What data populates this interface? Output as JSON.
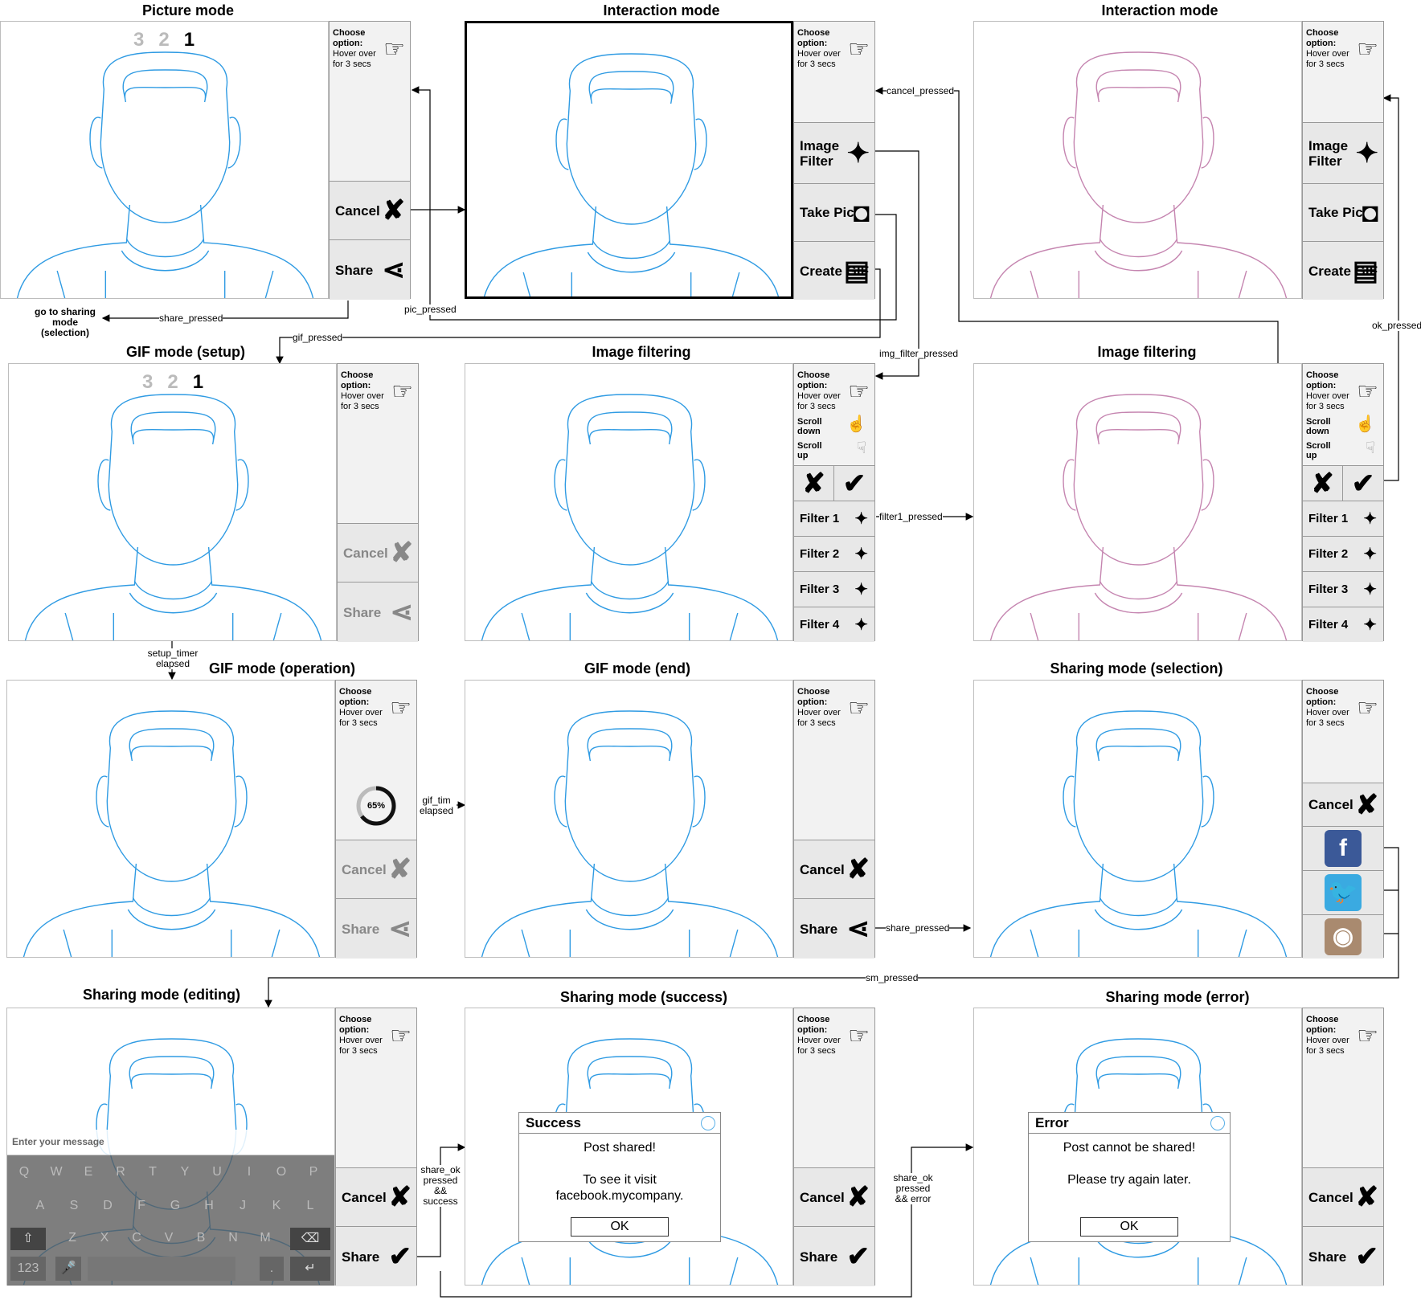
{
  "titles": {
    "picture_mode": "Picture mode",
    "interaction_mode_1": "Interaction mode",
    "interaction_mode_2": "Interaction mode",
    "gif_setup": "GIF mode (setup)",
    "image_filtering_1": "Image filtering",
    "image_filtering_2": "Image filtering",
    "gif_operation": "GIF mode (operation)",
    "gif_end": "GIF mode (end)",
    "sharing_selection": "Sharing mode (selection)",
    "sharing_editing": "Sharing mode (editing)",
    "sharing_success": "Sharing mode (success)",
    "sharing_error": "Sharing mode (error)"
  },
  "sidebar": {
    "choose": "Choose option:",
    "hover": "Hover over for 3 secs",
    "scroll_down": "Scroll down",
    "scroll_up": "Scroll up"
  },
  "buttons": {
    "cancel": "Cancel",
    "share": "Share",
    "image_filter": "Image Filter",
    "take_pic": "Take Pic",
    "create_gif": "Create GIF",
    "filter1": "Filter 1",
    "filter2": "Filter 2",
    "filter3": "Filter 3",
    "filter4": "Filter 4"
  },
  "countdown": {
    "n3": "3",
    "n2": "2",
    "n1": "1"
  },
  "progress": {
    "label": "65%",
    "value": 0.65
  },
  "edges": {
    "share_pressed_1": "share_pressed",
    "go_to_sharing": "go to sharing mode (selection)",
    "pic_pressed": "pic_pressed",
    "gif_pressed": "gif_pressed",
    "cancel_pressed": "cancel_pressed",
    "img_filter_pressed": "img_filter_pressed",
    "ok_pressed": "ok_pressed",
    "filter1_pressed": "filter1_pressed",
    "setup_timer": "setup_timer elapsed",
    "gif_timer": "gif_tim elapsed",
    "share_pressed_2": "share_pressed",
    "sm_pressed": "sm_pressed",
    "share_ok_success": "share_ok pressed && success",
    "share_ok_error": "share_ok pressed && error"
  },
  "keyboard": {
    "placeholder": "Enter your message",
    "row1": [
      "Q",
      "W",
      "E",
      "R",
      "T",
      "Y",
      "U",
      "I",
      "O",
      "P"
    ],
    "row2": [
      "A",
      "S",
      "D",
      "F",
      "G",
      "H",
      "J",
      "K",
      "L"
    ],
    "row3": [
      "Z",
      "X",
      "C",
      "V",
      "B",
      "N",
      "M"
    ],
    "numkey": "123",
    "period": "."
  },
  "dialogs": {
    "success_title": "Success",
    "success_line1": "Post shared!",
    "success_line2": "To see it visit facebook.mycompany.",
    "error_title": "Error",
    "error_line1": "Post cannot be shared!",
    "error_line2": "Please try again later.",
    "ok": "OK"
  },
  "colors": {
    "face_blue": "#2f9be3",
    "face_pink": "#c585b0",
    "facebook": "#3b5998",
    "twitter": "#3aaae1",
    "instagram": "#a98a6f"
  }
}
